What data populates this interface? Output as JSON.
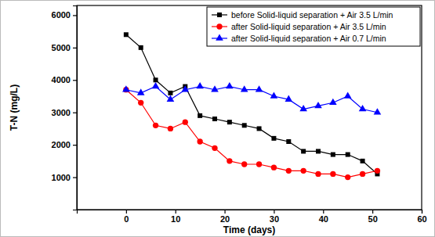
{
  "chart_data": {
    "type": "line",
    "x_label": "Time (days)",
    "y_label": "T-N (mg/L)",
    "x": [
      0,
      3,
      6,
      9,
      12,
      15,
      18,
      21,
      24,
      27,
      30,
      33,
      36,
      39,
      42,
      45,
      48,
      51
    ],
    "series": [
      {
        "name": "before Solid-liquid separation + Air 3.5 L/min",
        "color": "#000000",
        "marker": "square",
        "values": [
          5400,
          5000,
          4000,
          3600,
          3800,
          2900,
          2800,
          2700,
          2600,
          2500,
          2200,
          2100,
          1800,
          1800,
          1700,
          1700,
          1500,
          1100
        ]
      },
      {
        "name": "after Solid-liquid separation + Air 3.5 L/min",
        "color": "#ff0000",
        "marker": "circle",
        "values": [
          3700,
          3300,
          2600,
          2500,
          2700,
          2100,
          1900,
          1500,
          1400,
          1400,
          1300,
          1200,
          1200,
          1100,
          1100,
          1000,
          1100,
          1200
        ]
      },
      {
        "name": "after Solid-liquid separation + Air 0.7 L/min",
        "color": "#0000ff",
        "marker": "triangle",
        "values": [
          3700,
          3600,
          3800,
          3400,
          3700,
          3800,
          3700,
          3800,
          3700,
          3700,
          3500,
          3400,
          3100,
          3200,
          3300,
          3500,
          3100,
          3000
        ]
      }
    ],
    "xlim": [
      -10,
      60
    ],
    "xticks": [
      0,
      10,
      20,
      30,
      40,
      50,
      60
    ],
    "ylim": [
      0,
      6300
    ],
    "yticks": [
      1000,
      2000,
      3000,
      4000,
      5000,
      6000
    ],
    "grid": false,
    "legend": "upper right"
  }
}
